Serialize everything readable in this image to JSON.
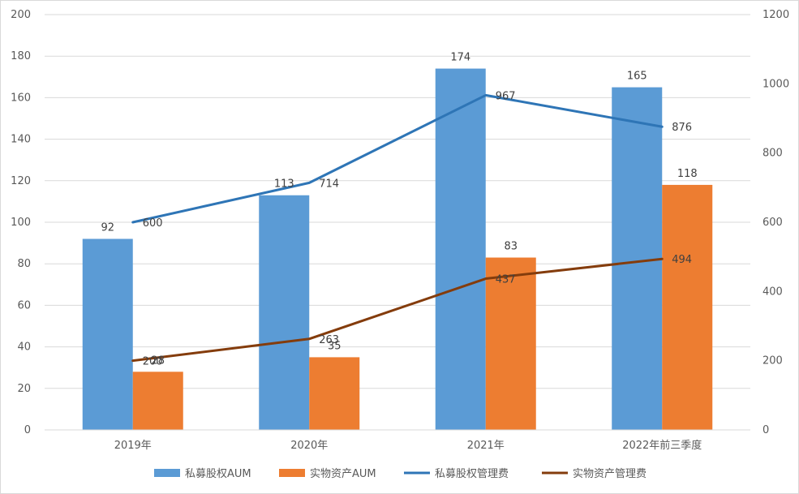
{
  "chart_data": {
    "type": "bar",
    "categories": [
      "2019年",
      "2020年",
      "2021年",
      "2022年前三季度"
    ],
    "series": [
      {
        "name": "私募股权AUM",
        "type": "bar",
        "axis": "left",
        "color": "#5b9bd5",
        "values": [
          92,
          113,
          174,
          165
        ]
      },
      {
        "name": "实物资产AUM",
        "type": "bar",
        "axis": "left",
        "color": "#ed7d31",
        "values": [
          28,
          35,
          83,
          118
        ]
      },
      {
        "name": "私募股权管理费",
        "type": "line",
        "axis": "right",
        "color": "#2e75b6",
        "values": [
          600,
          714,
          967,
          876
        ]
      },
      {
        "name": "实物资产管理费",
        "type": "line",
        "axis": "right",
        "color": "#843c0c",
        "values": [
          200,
          263,
          437,
          494
        ]
      }
    ],
    "y_left": {
      "ylim": [
        0,
        200
      ],
      "ticks": [
        "0",
        "20",
        "40",
        "60",
        "80",
        "100",
        "120",
        "140",
        "160",
        "180",
        "200"
      ]
    },
    "y_right": {
      "ylim": [
        0,
        1200
      ],
      "ticks": [
        "0",
        "200",
        "400",
        "600",
        "800",
        "1000",
        "1200"
      ]
    },
    "grid": true,
    "legend": "bottom",
    "title": "",
    "xlabel": "",
    "ylabel": ""
  }
}
